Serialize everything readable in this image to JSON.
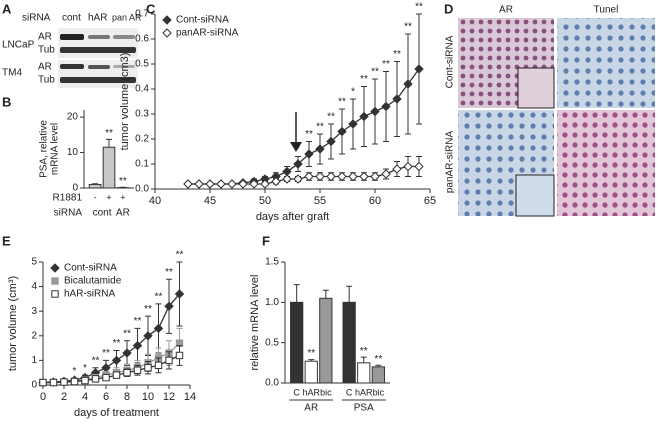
{
  "blot": {
    "label": "A",
    "title": "siRNA",
    "lanes": [
      "cont",
      "hAR",
      "pan AR"
    ],
    "rows": [
      {
        "cell": "LNCaP",
        "bands": [
          "AR",
          "Tub"
        ]
      },
      {
        "cell": "TM4",
        "bands": [
          "AR",
          "Tub"
        ]
      }
    ]
  },
  "histology": {
    "label": "D",
    "columns": [
      "AR",
      "Tunel"
    ],
    "rows": [
      "Cont-siRNA",
      "panAR-siRNA"
    ]
  },
  "chart_data": [
    {
      "type": "bar",
      "label": "B",
      "ylabel": [
        "PSA, relative",
        "mRNA level"
      ],
      "category_title": "R1881",
      "group_title": "siRNA",
      "color": "#c8c8c8",
      "ylim": [
        0,
        22
      ],
      "yticks": [
        0,
        10,
        20
      ],
      "groups": [
        {
          "name": "cont",
          "categories": [
            "-",
            "+"
          ],
          "values": [
            1,
            11.5
          ],
          "errors": [
            0.2,
            2.2
          ],
          "significance": [
            null,
            "**"
          ]
        },
        {
          "name": "AR",
          "categories": [
            "+"
          ],
          "values": [
            0.1
          ],
          "errors": [
            0.1
          ],
          "significance": [
            "**"
          ]
        }
      ]
    },
    {
      "type": "line",
      "label": "C",
      "ylabel": "tumor volume (cm3)",
      "xlabel": "days after graft",
      "xlim": [
        40,
        65
      ],
      "xticks": [
        40,
        45,
        50,
        55,
        60,
        65
      ],
      "ylim": [
        0,
        0.7
      ],
      "yticks": [
        {
          "value": 0,
          "label": "0.0"
        },
        0.1,
        0.2,
        0.3,
        0.4,
        0.5,
        0.6,
        0.7
      ],
      "x": [
        43,
        44,
        45,
        46,
        47,
        48,
        49,
        50,
        51,
        52,
        53,
        54,
        55,
        56,
        57,
        58,
        59,
        60,
        61,
        62,
        63,
        64
      ],
      "series": [
        {
          "name": "Cont-siRNA",
          "color": "#333333",
          "fill": "#333333",
          "marker": "diamond",
          "values": [
            0.02,
            0.02,
            0.02,
            0.02,
            0.02,
            0.025,
            0.03,
            0.04,
            0.05,
            0.07,
            0.1,
            0.14,
            0.16,
            0.19,
            0.23,
            0.26,
            0.29,
            0.31,
            0.33,
            0.36,
            0.42,
            0.48
          ],
          "errors": [
            0,
            0,
            0,
            0,
            0,
            0.005,
            0.01,
            0.01,
            0.015,
            0.02,
            0.03,
            0.05,
            0.06,
            0.07,
            0.09,
            0.1,
            0.12,
            0.13,
            0.14,
            0.15,
            0.2,
            0.22
          ],
          "significance": [
            null,
            null,
            null,
            null,
            null,
            null,
            null,
            null,
            null,
            null,
            "*",
            "**",
            "**",
            "**",
            "**",
            "*",
            "**",
            "**",
            "**",
            "**",
            "**",
            "**"
          ]
        },
        {
          "name": "panAR-siRNA",
          "color": "#333333",
          "fill": "#ffffff",
          "marker": "diamond",
          "values": [
            0.02,
            0.02,
            0.02,
            0.02,
            0.02,
            0.02,
            0.02,
            0.02,
            0.03,
            0.04,
            0.04,
            0.05,
            0.05,
            0.05,
            0.05,
            0.05,
            0.05,
            0.05,
            0.06,
            0.08,
            0.09,
            0.09
          ],
          "errors": [
            0,
            0,
            0,
            0,
            0,
            0,
            0,
            0,
            0.01,
            0.01,
            0.01,
            0.015,
            0.015,
            0.015,
            0.015,
            0.015,
            0.015,
            0.015,
            0.02,
            0.03,
            0.04,
            0.04
          ]
        }
      ]
    },
    {
      "type": "line",
      "label": "E",
      "ylabel": "tumor volume (cm³)",
      "xlabel": "days of treatment",
      "xlim": [
        0,
        14
      ],
      "xticks": [
        0,
        2,
        4,
        6,
        8,
        10,
        12,
        14
      ],
      "ylim": [
        0,
        5
      ],
      "yticks": [
        0,
        1,
        2,
        3,
        4,
        5
      ],
      "x": [
        0,
        1,
        2,
        3,
        4,
        5,
        6,
        7,
        8,
        9,
        10,
        11,
        12,
        13
      ],
      "series": [
        {
          "name": "Cont-siRNA",
          "color": "#333333",
          "fill": "#333333",
          "marker": "diamond",
          "values": [
            0.1,
            0.12,
            0.15,
            0.2,
            0.3,
            0.5,
            0.7,
            1.0,
            1.3,
            1.6,
            2.0,
            2.3,
            3.2,
            3.7
          ],
          "errors": [
            0.02,
            0.03,
            0.05,
            0.08,
            0.1,
            0.2,
            0.3,
            0.4,
            0.5,
            0.7,
            0.8,
            1.0,
            1.1,
            1.3
          ],
          "significance": [
            null,
            null,
            null,
            "*",
            "*",
            "**",
            "**",
            "**",
            "**",
            "**",
            "**",
            "**",
            "**",
            "**"
          ]
        },
        {
          "name": "Bicalutamide",
          "color": "#999999",
          "fill": "#999999",
          "marker": "square",
          "values": [
            0.1,
            0.1,
            0.12,
            0.15,
            0.2,
            0.3,
            0.4,
            0.5,
            0.6,
            0.7,
            0.9,
            1.1,
            1.3,
            1.7
          ],
          "errors": [
            0.02,
            0.02,
            0.03,
            0.05,
            0.07,
            0.1,
            0.15,
            0.2,
            0.25,
            0.3,
            0.35,
            0.4,
            0.5,
            0.6
          ]
        },
        {
          "name": "hAR-siRNA",
          "color": "#333333",
          "fill": "#ffffff",
          "marker": "square",
          "values": [
            0.1,
            0.1,
            0.12,
            0.14,
            0.18,
            0.25,
            0.3,
            0.4,
            0.5,
            0.6,
            0.7,
            0.8,
            1.0,
            1.2
          ],
          "errors": [
            0.02,
            0.02,
            0.03,
            0.04,
            0.05,
            0.08,
            0.1,
            0.12,
            0.15,
            0.2,
            0.25,
            0.3,
            0.35,
            0.4
          ]
        }
      ]
    },
    {
      "type": "bar",
      "label": "F",
      "ylabel": "relative mRNA level",
      "colors": [
        "#333333",
        "#ffffff",
        "#999999"
      ],
      "ylim": [
        0,
        1.5
      ],
      "yticks": [
        {
          "value": 0,
          "label": "0.0"
        },
        0.5,
        {
          "value": 1,
          "label": "1.0"
        },
        1.5
      ],
      "groups": [
        {
          "name": "AR",
          "categories": [
            "C",
            "hAR",
            "bic"
          ],
          "values": [
            1.0,
            0.27,
            1.05
          ],
          "errors": [
            0.22,
            0.02,
            0.1
          ],
          "significance": [
            null,
            "**",
            null
          ]
        },
        {
          "name": "PSA",
          "categories": [
            "C",
            "hAR",
            "bic"
          ],
          "values": [
            1.0,
            0.25,
            0.2
          ],
          "errors": [
            0.2,
            0.07,
            0.02
          ],
          "significance": [
            null,
            "**",
            "**"
          ]
        }
      ]
    }
  ]
}
